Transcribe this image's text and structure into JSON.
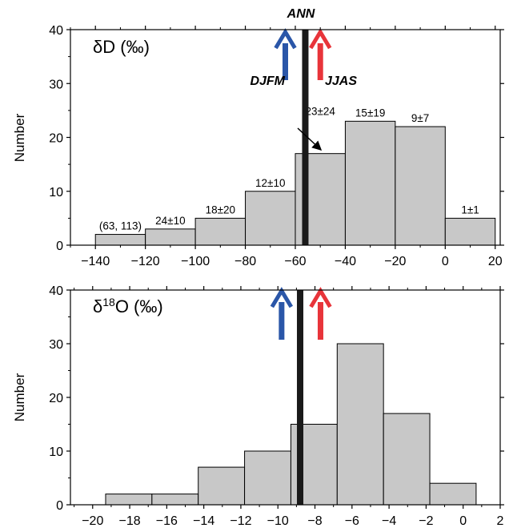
{
  "chart_data": [
    {
      "type": "bar",
      "panel_label": "δD (‰)",
      "ylabel": "Number",
      "xlim": [
        -150,
        22
      ],
      "ylim": [
        0,
        40
      ],
      "x_ticks": [
        -140,
        -120,
        -100,
        -80,
        -60,
        -40,
        -20,
        0,
        20
      ],
      "x_tick_labels": [
        "−140",
        "−120",
        "−100",
        "−80",
        "−60",
        "−40",
        "−20",
        "0",
        "20"
      ],
      "y_ticks": [
        0,
        10,
        20,
        30,
        40
      ],
      "bars": [
        {
          "x0": -140,
          "x1": -120,
          "value": 2,
          "label": "(63, 113)"
        },
        {
          "x0": -120,
          "x1": -100,
          "value": 3,
          "label": "24±10"
        },
        {
          "x0": -100,
          "x1": -80,
          "value": 5,
          "label": "18±20"
        },
        {
          "x0": -80,
          "x1": -60,
          "value": 10,
          "label": "12±10"
        },
        {
          "x0": -60,
          "x1": -40,
          "value": 17,
          "label": "23±24"
        },
        {
          "x0": -40,
          "x1": -20,
          "value": 23,
          "label": "15±19"
        },
        {
          "x0": -20,
          "x1": 0,
          "value": 22,
          "label": "9±7"
        },
        {
          "x0": 0,
          "x1": 20,
          "value": 5,
          "label": "1±1"
        }
      ],
      "ann_line": {
        "label": "ANN",
        "x": -56
      },
      "arrows": [
        {
          "label": "DJFM",
          "x": -64,
          "color": "#2a56a8"
        },
        {
          "label": "JJAS",
          "x": -50,
          "color": "#e8343a"
        }
      ]
    },
    {
      "type": "bar",
      "panel_label_prefix": "δ",
      "panel_label_sup": "18",
      "panel_label_suffix": "O (‰)",
      "ylabel": "Number",
      "xlim": [
        -21.2,
        2
      ],
      "ylim": [
        0,
        40
      ],
      "x_ticks": [
        -20,
        -18,
        -16,
        -14,
        -12,
        -10,
        -8,
        -6,
        -4,
        -2,
        0,
        2
      ],
      "x_tick_labels": [
        "−20",
        "−18",
        "−16",
        "−14",
        "−12",
        "−10",
        "−8",
        "−6",
        "−4",
        "−2",
        "0",
        "2"
      ],
      "y_ticks": [
        0,
        10,
        20,
        30,
        40
      ],
      "bars": [
        {
          "x0": -19.3,
          "x1": -16.8,
          "value": 2
        },
        {
          "x0": -16.8,
          "x1": -14.3,
          "value": 2
        },
        {
          "x0": -14.3,
          "x1": -11.8,
          "value": 7
        },
        {
          "x0": -11.8,
          "x1": -9.3,
          "value": 10
        },
        {
          "x0": -9.3,
          "x1": -6.8,
          "value": 15
        },
        {
          "x0": -6.8,
          "x1": -4.3,
          "value": 30
        },
        {
          "x0": -4.3,
          "x1": -1.8,
          "value": 17
        },
        {
          "x0": -1.8,
          "x1": 0.7,
          "value": 4
        }
      ],
      "ann_line": {
        "x": -8.8
      },
      "arrows": [
        {
          "x": -9.8,
          "color": "#2a56a8"
        },
        {
          "x": -7.7,
          "color": "#e8343a"
        }
      ]
    }
  ]
}
